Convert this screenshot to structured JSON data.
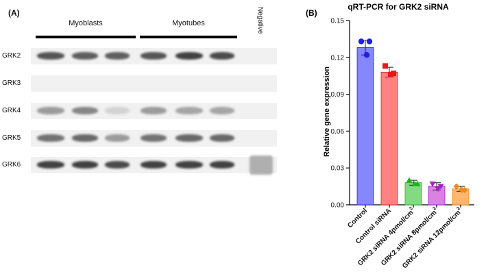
{
  "panel_a": {
    "letter": "(A)",
    "groups": [
      {
        "label": "Myoblasts"
      },
      {
        "label": "Myotubes"
      }
    ],
    "negative_label": "Negative",
    "rows": [
      {
        "label": "GRK2",
        "bands": [
          0.75,
          0.7,
          0.7,
          0.75,
          0.85,
          0.8,
          0
        ]
      },
      {
        "label": "GRK3",
        "bands": [
          0,
          0,
          0,
          0,
          0,
          0,
          0
        ]
      },
      {
        "label": "GRK4",
        "bands": [
          0.4,
          0.5,
          0.12,
          0.4,
          0.35,
          0.35,
          0
        ]
      },
      {
        "label": "GRK5",
        "bands": [
          0.6,
          0.65,
          0.4,
          0.6,
          0.65,
          0.65,
          0
        ]
      },
      {
        "label": "GRK6",
        "bands": [
          0.85,
          0.85,
          0.8,
          0.85,
          0.85,
          0.85,
          0.3
        ]
      }
    ]
  },
  "panel_b": {
    "letter": "(B)"
  },
  "chart_data": {
    "type": "bar",
    "title": "qRT-PCR for GRK2 siRNA",
    "xlabel": "",
    "ylabel": "Relative gene expression",
    "ylim": [
      0,
      0.15
    ],
    "yticks": [
      "0.00",
      "0.03",
      "0.06",
      "0.09",
      "0.12",
      "0.15"
    ],
    "categories": [
      "Control",
      "Control siRNA",
      "GRK2 siRNA 4pmol/cm",
      "GRK2 siRNA 8pmol/cm",
      "GRK2 siRNA 12pmol/cm"
    ],
    "category_superscripts": [
      "",
      "",
      "2",
      "2",
      "2"
    ],
    "values": [
      0.128,
      0.108,
      0.018,
      0.015,
      0.013
    ],
    "errors": [
      0.006,
      0.004,
      0.002,
      0.003,
      0.002
    ],
    "points": [
      [
        0.133,
        0.133,
        0.122
      ],
      [
        0.113,
        0.107,
        0.106
      ],
      [
        0.02,
        0.017,
        0.017
      ],
      [
        0.017,
        0.015,
        0.013
      ],
      [
        0.015,
        0.012,
        0.012
      ]
    ],
    "colors": [
      "#8080ff",
      "#ff7b7b",
      "#7bd87b",
      "#d67be0",
      "#ffb266"
    ],
    "point_colors": [
      "#1f1fe6",
      "#e51919",
      "#1fb41f",
      "#a61fc6",
      "#ee8a1a"
    ],
    "marker_shapes": [
      "circle",
      "square",
      "triangle-up",
      "triangle-down",
      "diamond"
    ]
  }
}
